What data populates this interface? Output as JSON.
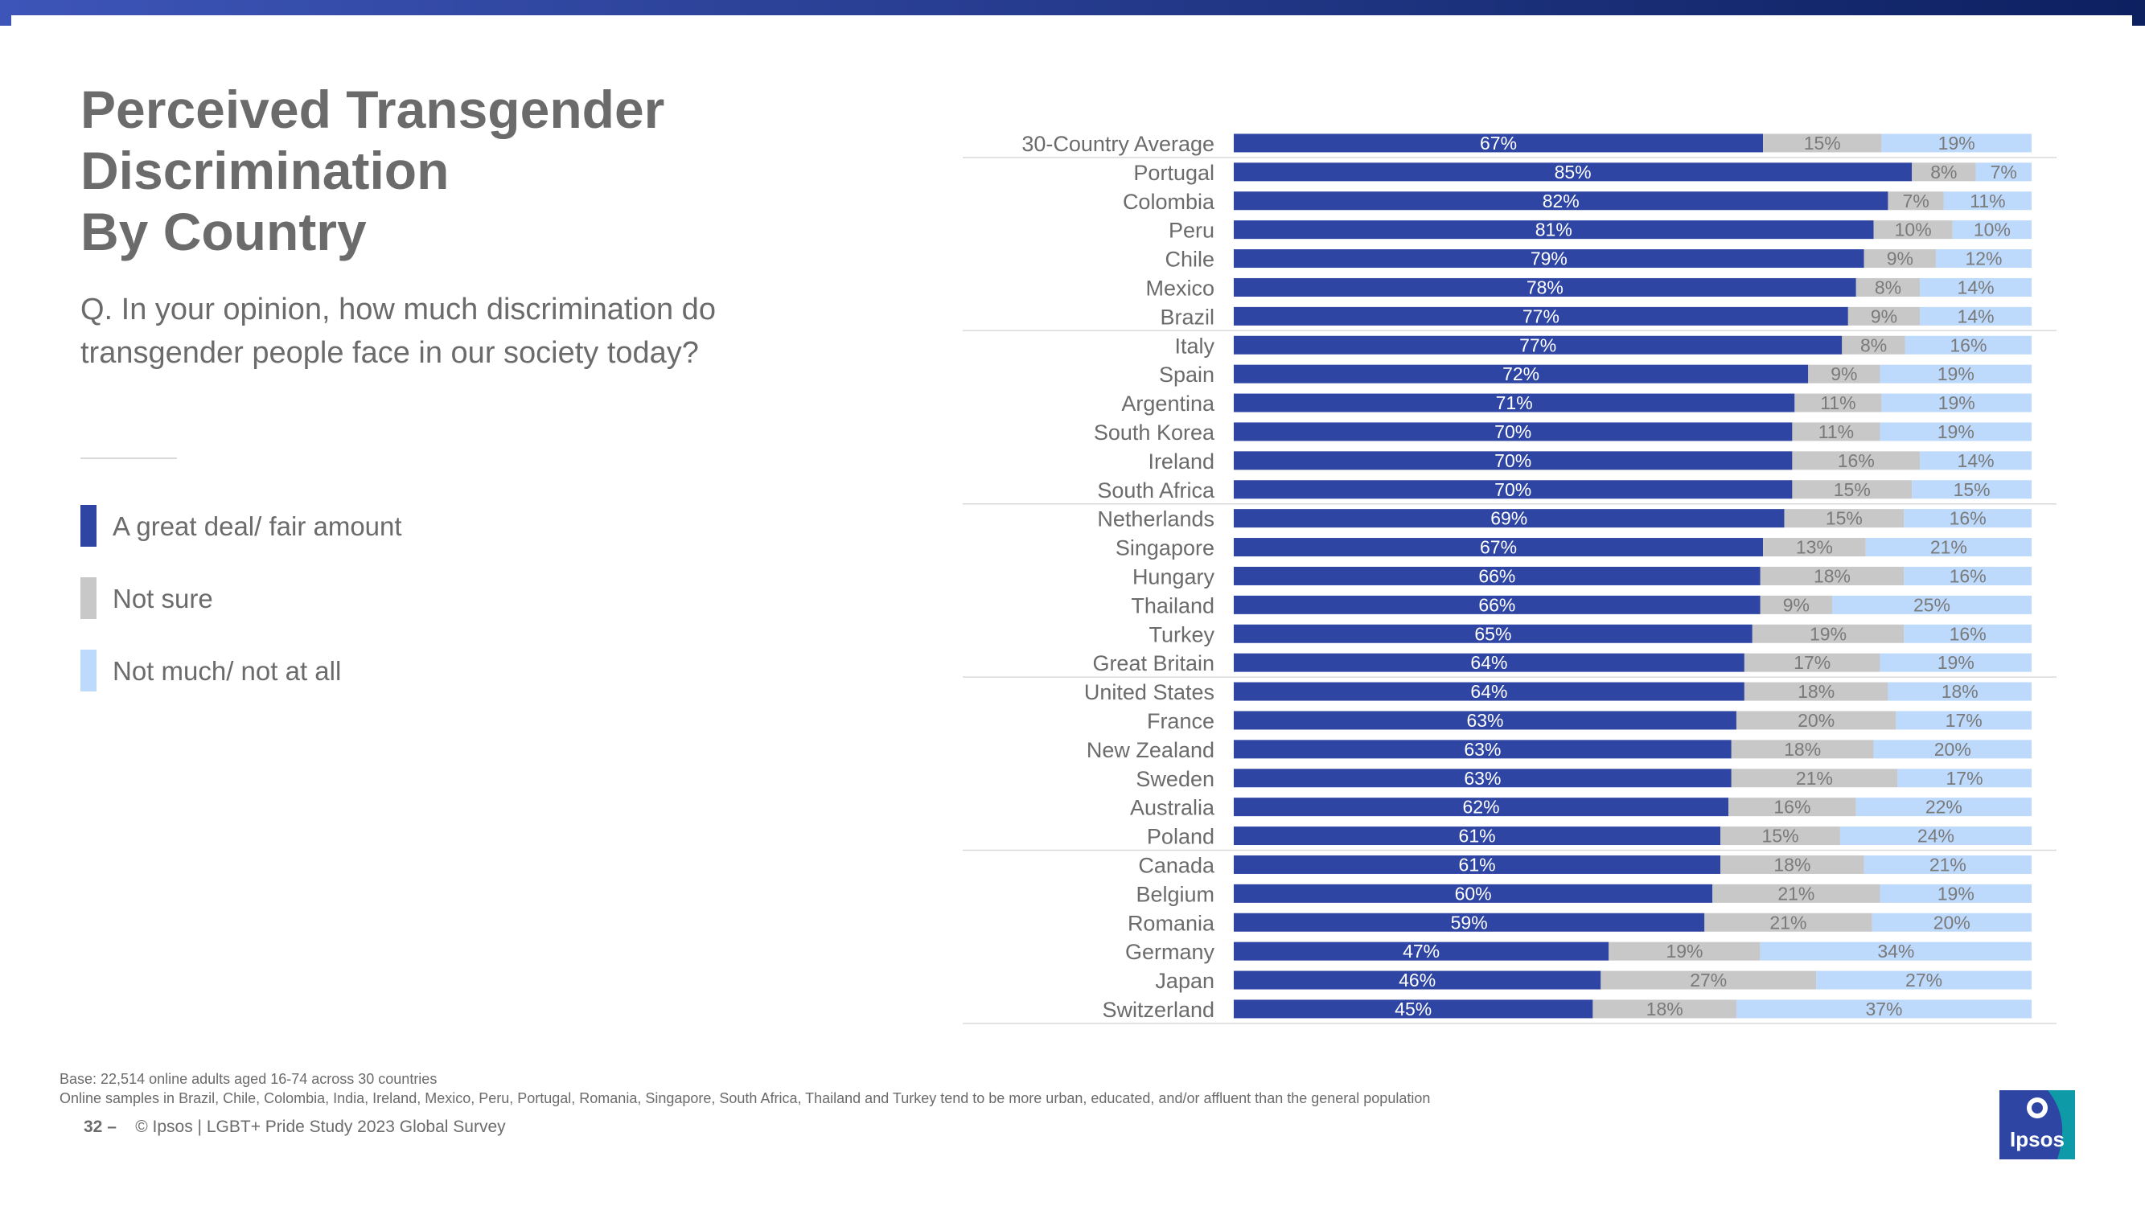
{
  "header": {
    "title_lines": [
      "Perceived Transgender",
      "Discrimination",
      "By Country"
    ],
    "question": "Q. In your opinion, how much discrimination do transgender people face in our society today?"
  },
  "legend": [
    {
      "label": "A great deal/ fair amount",
      "color": "#2e45a3"
    },
    {
      "label": "Not sure",
      "color": "#c8c8c8"
    },
    {
      "label": "Not much/ not at all",
      "color": "#bdd9fb"
    }
  ],
  "chart_data": {
    "type": "bar",
    "orientation": "horizontal",
    "stacked": true,
    "value_format": "percent",
    "categories": [
      "30-Country Average",
      "Portugal",
      "Colombia",
      "Peru",
      "Chile",
      "Mexico",
      "Brazil",
      "Italy",
      "Spain",
      "Argentina",
      "South Korea",
      "Ireland",
      "South Africa",
      "Netherlands",
      "Singapore",
      "Hungary",
      "Thailand",
      "Turkey",
      "Great Britain",
      "United States",
      "France",
      "New Zealand",
      "Sweden",
      "Australia",
      "Poland",
      "Canada",
      "Belgium",
      "Romania",
      "Germany",
      "Japan",
      "Switzerland"
    ],
    "series": [
      {
        "name": "A great deal/ fair amount",
        "color": "#2e45a3",
        "label_color": "#ffffff",
        "values": [
          67,
          85,
          82,
          81,
          79,
          78,
          77,
          77,
          72,
          71,
          70,
          70,
          70,
          69,
          67,
          66,
          66,
          65,
          64,
          64,
          63,
          63,
          63,
          62,
          61,
          61,
          60,
          59,
          47,
          46,
          45
        ]
      },
      {
        "name": "Not sure",
        "color": "#c8c8c8",
        "label_color": "#7a7a7a",
        "values": [
          15,
          8,
          7,
          10,
          9,
          8,
          9,
          8,
          9,
          11,
          11,
          16,
          15,
          15,
          13,
          18,
          9,
          19,
          17,
          18,
          20,
          18,
          21,
          16,
          15,
          18,
          21,
          21,
          19,
          27,
          18
        ]
      },
      {
        "name": "Not much/ not at all",
        "color": "#bdd9fb",
        "label_color": "#7a7a7a",
        "values": [
          19,
          7,
          11,
          10,
          12,
          14,
          14,
          16,
          19,
          19,
          19,
          14,
          15,
          16,
          21,
          16,
          25,
          16,
          19,
          18,
          17,
          20,
          17,
          22,
          24,
          21,
          19,
          20,
          34,
          27,
          37
        ]
      }
    ],
    "xlim": [
      0,
      100
    ],
    "group_separators_after": [
      0,
      6,
      12,
      18,
      24,
      30
    ]
  },
  "footer": {
    "base": "Base: 22,514 online adults aged 16-74 across 30 countries",
    "note": "Online samples in Brazil, Chile, Colombia, India, Ireland, Mexico, Peru, Portugal, Romania, Singapore, South Africa, Thailand and Turkey tend to be more urban, educated, and/or affluent than the general population",
    "page_number": "32 –",
    "source": "© Ipsos | LGBT+ Pride Study 2023 Global Survey"
  },
  "logo": {
    "text": "Ipsos",
    "color": "#0f9aa8"
  },
  "colors": {
    "topbar_dark": "#0d2060",
    "topbar_light": "#3d55b8",
    "text_gray": "#6b6b6b"
  }
}
